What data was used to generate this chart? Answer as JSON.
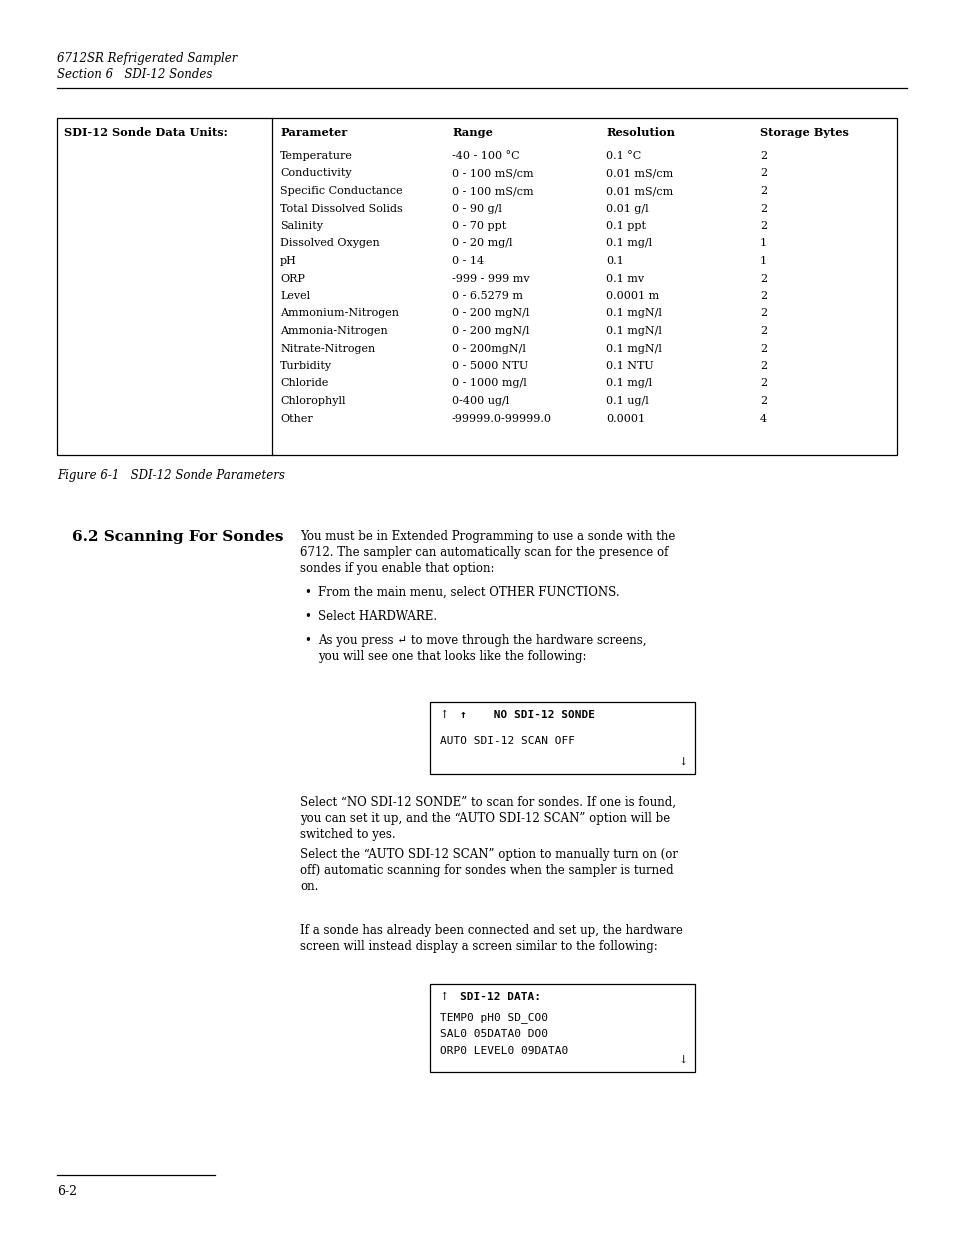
{
  "page_bg": "#ffffff",
  "header_line1": "6712SR Refrigerated Sampler",
  "header_line2": "Section 6   SDI-12 Sondes",
  "table_left_col": "SDI-12 Sonde Data Units:",
  "table_headers": [
    "Parameter",
    "Range",
    "Resolution",
    "Storage Bytes"
  ],
  "table_rows": [
    [
      "Temperature",
      "-40 - 100 °C",
      "0.1 °C",
      "2"
    ],
    [
      "Conductivity",
      "0 - 100 mS/cm",
      "0.01 mS/cm",
      "2"
    ],
    [
      "Specific Conductance",
      "0 - 100 mS/cm",
      "0.01 mS/cm",
      "2"
    ],
    [
      "Total Dissolved Solids",
      "0 - 90 g/l",
      "0.01 g/l",
      "2"
    ],
    [
      "Salinity",
      "0 - 70 ppt",
      "0.1 ppt",
      "2"
    ],
    [
      "Dissolved Oxygen",
      "0 - 20 mg/l",
      "0.1 mg/l",
      "1"
    ],
    [
      "pH",
      "0 - 14",
      "0.1",
      "1"
    ],
    [
      "ORP",
      "-999 - 999 mv",
      "0.1 mv",
      "2"
    ],
    [
      "Level",
      "0 - 6.5279 m",
      "0.0001 m",
      "2"
    ],
    [
      "Ammonium-Nitrogen",
      "0 - 200 mgN/l",
      "0.1 mgN/l",
      "2"
    ],
    [
      "Ammonia-Nitrogen",
      "0 - 200 mgN/l",
      "0.1 mgN/l",
      "2"
    ],
    [
      "Nitrate-Nitrogen",
      "0 - 200mgN/l",
      "0.1 mgN/l",
      "2"
    ],
    [
      "Turbidity",
      "0 - 5000 NTU",
      "0.1 NTU",
      "2"
    ],
    [
      "Chloride",
      "0 - 1000 mg/l",
      "0.1 mg/l",
      "2"
    ],
    [
      "Chlorophyll",
      "0-400 ug/l",
      "0.1 ug/l",
      "2"
    ],
    [
      "Other",
      "-99999.0-99999.0",
      "0.0001",
      "4"
    ]
  ],
  "figure_caption": "Figure 6-1   SDI-12 Sonde Parameters",
  "section_heading": "6.2 Scanning For Sondes",
  "body_text1_lines": [
    "You must be in Extended Programming to use a sonde with the",
    "6712. The sampler can automatically scan for the presence of",
    "sondes if you enable that option:"
  ],
  "bullets": [
    [
      "From the main menu, select OTHER FUNCTIONS."
    ],
    [
      "Select HARDWARE."
    ],
    [
      "As you press ↵ to move through the hardware screens,",
      "you will see one that looks like the following:"
    ]
  ],
  "screen1_bold": "↑    NO SDI-12 SONDE",
  "screen1_normal": "AUTO SDI-12 SCAN OFF",
  "screen1_arrow": "↓",
  "body_text2_lines": [
    "Select “NO SDI-12 SONDE” to scan for sondes. If one is found,",
    "you can set it up, and the “AUTO SDI-12 SCAN” option will be",
    "switched to yes."
  ],
  "body_text3_lines": [
    "Select the “AUTO SDI-12 SCAN” option to manually turn on (or",
    "off) automatic scanning for sondes when the sampler is turned",
    "on."
  ],
  "body_text4_lines": [
    "If a sonde has already been connected and set up, the hardware",
    "screen will instead display a screen similar to the following:"
  ],
  "screen2_line1_bold": "SDI-12 DATA:",
  "screen2_line1_prefix": "↑",
  "screen2_lines": [
    "TEMP0 pH0 SD_CO0",
    "SAL0 05DATA0 DO0",
    "ORP0 LEVEL0 09DATA0"
  ],
  "screen2_arrow": "↓",
  "footer_text": "6-2"
}
